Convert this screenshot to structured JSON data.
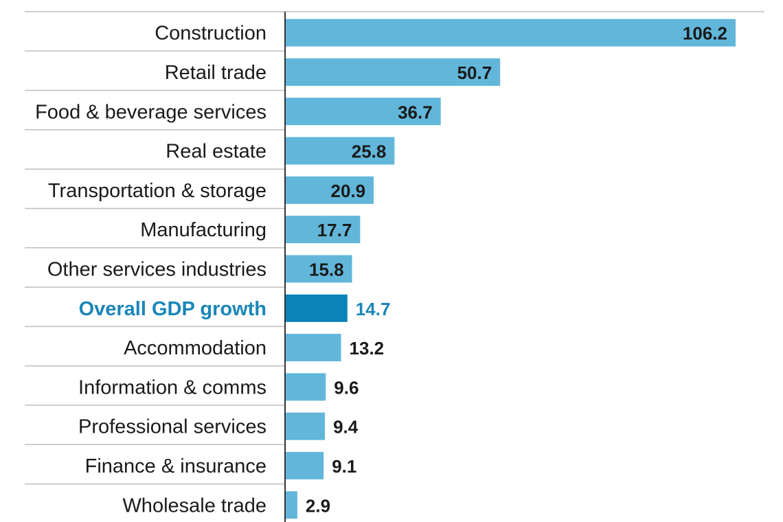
{
  "chart_data": {
    "type": "bar",
    "orientation": "horizontal",
    "title": "",
    "xlabel": "",
    "ylabel": "",
    "categories": [
      "Construction",
      "Retail trade",
      "Food & beverage services",
      "Real estate",
      "Transportation & storage",
      "Manufacturing",
      "Other services industries",
      "Overall GDP growth",
      "Accommodation",
      "Information & comms",
      "Professional services",
      "Finance & insurance",
      "Wholesale trade"
    ],
    "values": [
      106.2,
      50.7,
      36.7,
      25.8,
      20.9,
      17.7,
      15.8,
      14.7,
      13.2,
      9.6,
      9.4,
      9.1,
      2.9
    ],
    "value_labels": [
      "106.2",
      "50.7",
      "36.7",
      "25.8",
      "20.9",
      "17.7",
      "15.8",
      "14.7",
      "13.2",
      "9.6",
      "9.4",
      "9.1",
      "2.9"
    ],
    "highlight": "Overall GDP growth",
    "xlim": [
      0,
      115
    ],
    "grid": false,
    "colors": {
      "bar": "#62b6da",
      "highlight_bar": "#0b82b8",
      "highlight_text": "#1a86b8",
      "text": "#1a1a1a",
      "rule": "#bdbdbd",
      "axis": "#333333"
    }
  }
}
